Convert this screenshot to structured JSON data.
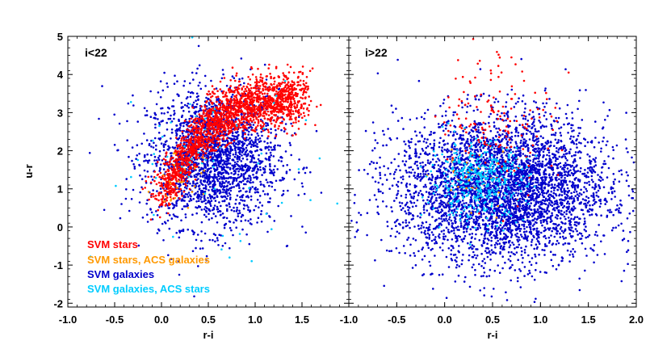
{
  "chart_data": {
    "type": "scatter",
    "figure_description_note": "",
    "ylabel": "u-r",
    "ylim": [
      -2.1,
      5.0
    ],
    "yticks": [
      -2,
      -1,
      0,
      1,
      2,
      3,
      4,
      5
    ],
    "colors": {
      "svm_stars": "#ff0000",
      "svm_stars_acs_galaxies": "#ff9900",
      "svm_galaxies": "#0000cc",
      "svm_galaxies_acs_stars": "#00ccff",
      "axis": "#000000"
    },
    "legend": [
      {
        "key": "svm_stars",
        "label": "SVM stars"
      },
      {
        "key": "svm_stars_acs_galaxies",
        "label": "SVM stars, ACS galaxies"
      },
      {
        "key": "svm_galaxies",
        "label": "SVM galaxies"
      },
      {
        "key": "svm_galaxies_acs_stars",
        "label": "SVM galaxies, ACS stars"
      }
    ],
    "legend_position": "bottom-left of left panel",
    "panels": [
      {
        "title": "i<22",
        "xlabel": "r-i",
        "xlim": [
          -1.0,
          2.0
        ],
        "xticks": [
          "-1.0",
          "-0.5",
          "0.0",
          "0.5",
          "1.0",
          "1.5"
        ],
        "xtick_values": [
          -1.0,
          -0.5,
          0.0,
          0.5,
          1.0,
          1.5
        ],
        "series": [
          {
            "name": "SVM galaxies",
            "key": "svm_galaxies",
            "distribution": {
              "cx": 0.55,
              "cy": 1.8,
              "sx": 0.35,
              "sy": 0.9,
              "n": 2200
            }
          },
          {
            "name": "SVM stars",
            "key": "svm_stars",
            "distribution": {
              "track": [
                [
                  0.0,
                  0.9
                ],
                [
                  0.2,
                  1.6
                ],
                [
                  0.5,
                  2.7
                ],
                [
                  0.9,
                  3.2
                ],
                [
                  1.5,
                  3.4
                ]
              ],
              "sy": 0.35,
              "n": 2000
            }
          },
          {
            "name": "SVM stars, ACS galaxies",
            "key": "svm_stars_acs_galaxies",
            "distribution": {
              "cx": 0.2,
              "cy": 1.1,
              "sx": 0.15,
              "sy": 0.4,
              "n": 25
            }
          },
          {
            "name": "SVM galaxies, ACS stars",
            "key": "svm_galaxies_acs_stars",
            "distribution": {
              "cx": 0.5,
              "cy": 1.6,
              "sx": 0.6,
              "sy": 1.2,
              "n": 60
            }
          }
        ]
      },
      {
        "title": "i>22",
        "xlabel": "r-i",
        "xlim": [
          -1.0,
          2.0
        ],
        "xticks": [
          "-1.0",
          "-0.5",
          "0.0",
          "0.5",
          "1.0",
          "1.5",
          "2.0"
        ],
        "xtick_values": [
          -1.0,
          -0.5,
          0.0,
          0.5,
          1.0,
          1.5,
          2.0
        ],
        "series": [
          {
            "name": "SVM galaxies",
            "key": "svm_galaxies",
            "distribution": {
              "cx": 0.6,
              "cy": 1.0,
              "sx": 0.55,
              "sy": 0.95,
              "n": 4200
            }
          },
          {
            "name": "SVM stars",
            "key": "svm_stars",
            "distribution": {
              "cx": 0.55,
              "cy": 2.8,
              "sx": 0.3,
              "sy": 0.9,
              "n": 160
            }
          },
          {
            "name": "SVM stars, ACS galaxies",
            "key": "svm_stars_acs_galaxies",
            "distribution": {
              "cx": 0.3,
              "cy": 1.2,
              "sx": 0.2,
              "sy": 0.5,
              "n": 30
            }
          },
          {
            "name": "SVM galaxies, ACS stars",
            "key": "svm_galaxies_acs_stars",
            "distribution": {
              "cx": 0.35,
              "cy": 1.2,
              "sx": 0.25,
              "sy": 0.5,
              "n": 400
            }
          }
        ]
      }
    ]
  }
}
